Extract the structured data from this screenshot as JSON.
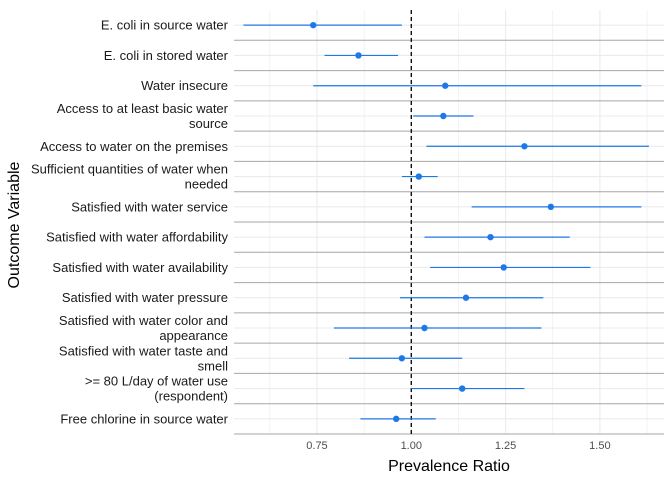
{
  "chart_data": {
    "type": "forest",
    "xlabel": "Prevalence Ratio",
    "ylabel": "Outcome Variable",
    "xlim": [
      0.53,
      1.67
    ],
    "x_ticks": [
      0.75,
      1.0,
      1.25,
      1.5
    ],
    "x_tick_labels": [
      "0.75",
      "1.00",
      "1.25",
      "1.50"
    ],
    "reference_line": 1.0,
    "grid": true,
    "colors": {
      "point": "#1f78e8",
      "reference": "#000000",
      "separator": "#a6a6a6",
      "grid": "#ebebeb"
    },
    "rows": [
      {
        "label": [
          "E. coli in source water"
        ],
        "pr": 0.74,
        "lo": 0.555,
        "hi": 0.975
      },
      {
        "label": [
          "E. coli in stored water"
        ],
        "pr": 0.86,
        "lo": 0.77,
        "hi": 0.965
      },
      {
        "label": [
          "Water insecure"
        ],
        "pr": 1.09,
        "lo": 0.74,
        "hi": 1.61
      },
      {
        "label": [
          "Access to at least basic water",
          "source"
        ],
        "pr": 1.085,
        "lo": 1.005,
        "hi": 1.165
      },
      {
        "label": [
          "Access to water on the premises"
        ],
        "pr": 1.3,
        "lo": 1.04,
        "hi": 1.63
      },
      {
        "label": [
          "Sufficient quantities of water when",
          "needed"
        ],
        "pr": 1.02,
        "lo": 0.975,
        "hi": 1.07
      },
      {
        "label": [
          "Satisfied with water service"
        ],
        "pr": 1.37,
        "lo": 1.16,
        "hi": 1.61
      },
      {
        "label": [
          "Satisfied with water affordability"
        ],
        "pr": 1.21,
        "lo": 1.035,
        "hi": 1.42
      },
      {
        "label": [
          "Satisfied with water availability"
        ],
        "pr": 1.245,
        "lo": 1.05,
        "hi": 1.475
      },
      {
        "label": [
          "Satisfied with water pressure"
        ],
        "pr": 1.145,
        "lo": 0.97,
        "hi": 1.35
      },
      {
        "label": [
          "Satisfied with water color and",
          "appearance"
        ],
        "pr": 1.035,
        "lo": 0.795,
        "hi": 1.345
      },
      {
        "label": [
          "Satisfied with water taste and",
          "smell"
        ],
        "pr": 0.975,
        "lo": 0.835,
        "hi": 1.135
      },
      {
        "label": [
          ">= 80 L/day of water use",
          "(respondent)"
        ],
        "pr": 1.135,
        "lo": 1.0,
        "hi": 1.3
      },
      {
        "label": [
          "Free chlorine in source water"
        ],
        "pr": 0.96,
        "lo": 0.865,
        "hi": 1.065
      }
    ]
  }
}
